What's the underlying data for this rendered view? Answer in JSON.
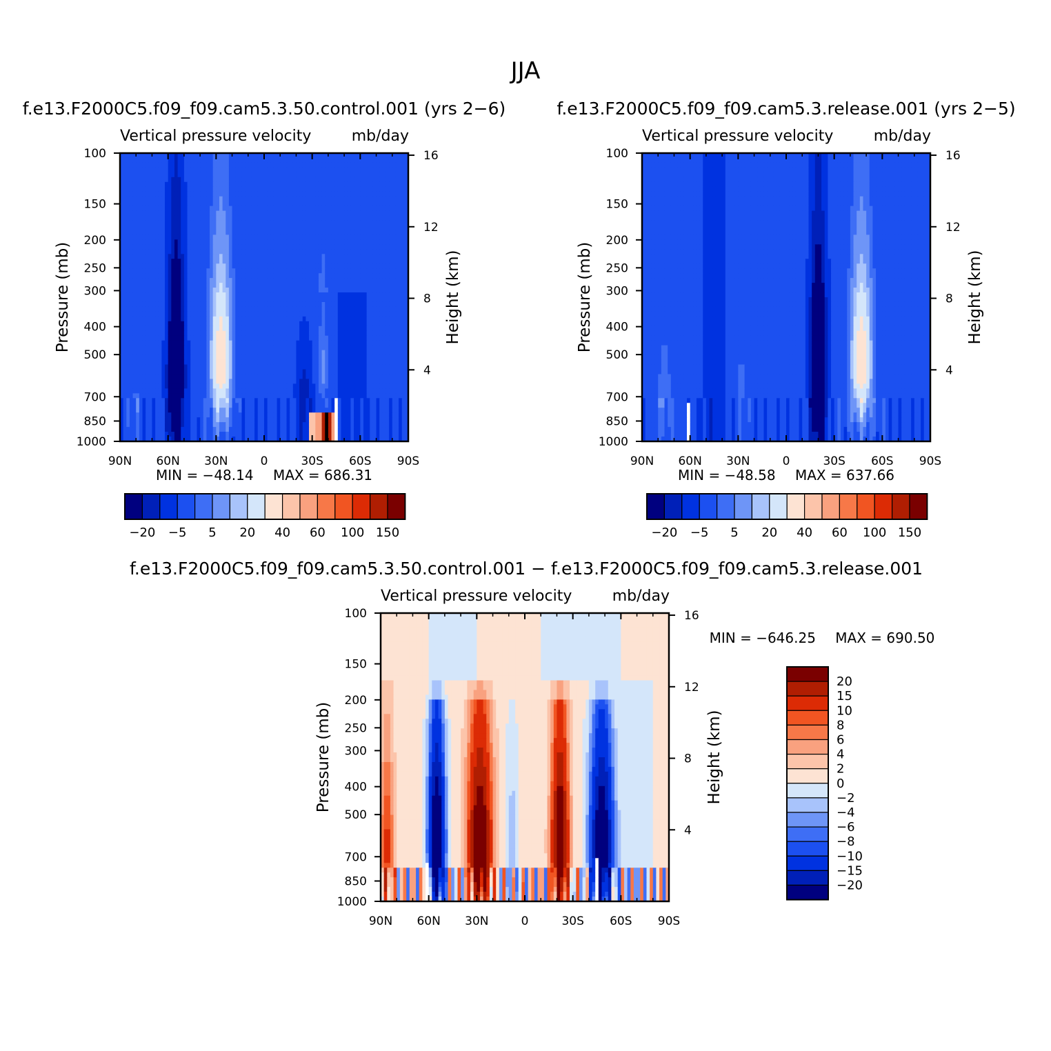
{
  "figure_title": "JJA",
  "chart_data": [
    {
      "type": "heatmap",
      "panel": "control",
      "title": "f.e13.F2000C5.f09_f09.cam5.3.50.control.001 (yrs 2−6)",
      "subtitle_left": "Vertical pressure velocity",
      "subtitle_right": "mb/day",
      "xlabel": "",
      "ylabel": "Pressure (mb)",
      "ylabel_right": "Height (km)",
      "x_ticks": [
        "90N",
        "60N",
        "30N",
        "0",
        "30S",
        "60S",
        "90S"
      ],
      "x_tick_values": [
        90,
        60,
        30,
        0,
        -30,
        -60,
        -90
      ],
      "xlim": [
        90,
        -90
      ],
      "y_ticks": [
        100,
        150,
        200,
        250,
        300,
        400,
        500,
        700,
        850,
        1000
      ],
      "ylim": [
        1000,
        100
      ],
      "y_scale": "log",
      "right_ticks": [
        4,
        8,
        12,
        16
      ],
      "min_text": "MIN = −48.14",
      "max_text": "MAX = 686.31",
      "min": -48.14,
      "max": 686.31,
      "colorbar_labels": [
        "−20",
        "−5",
        "5",
        "20",
        "40",
        "60",
        "100",
        "150"
      ],
      "colorbar_orientation": "horizontal",
      "features": [
        {
          "lat": 55,
          "p_top": 230,
          "p_bot": 1000,
          "value": -35,
          "desc": "strong descent near 55N"
        },
        {
          "lat": 28,
          "p_top": 240,
          "p_bot": 1000,
          "value": 15,
          "desc": "ascent near 28N"
        },
        {
          "lat": -25,
          "p_top": 350,
          "p_bot": 1000,
          "value": -14,
          "desc": "descent near 25S"
        },
        {
          "lat": -40,
          "p_top": 700,
          "p_bot": 1000,
          "value": 150,
          "desc": "strong ascent near 40S surface"
        }
      ]
    },
    {
      "type": "heatmap",
      "panel": "release",
      "title": "f.e13.F2000C5.f09_f09.cam5.3.release.001 (yrs 2−5)",
      "subtitle_left": "Vertical pressure velocity",
      "subtitle_right": "mb/day",
      "xlabel": "",
      "ylabel": "Pressure (mb)",
      "ylabel_right": "Height (km)",
      "x_ticks": [
        "90N",
        "60N",
        "30N",
        "0",
        "30S",
        "60S",
        "90S"
      ],
      "x_tick_values": [
        90,
        60,
        30,
        0,
        -30,
        -60,
        -90
      ],
      "xlim": [
        90,
        -90
      ],
      "y_ticks": [
        100,
        150,
        200,
        250,
        300,
        400,
        500,
        700,
        850,
        1000
      ],
      "ylim": [
        1000,
        100
      ],
      "y_scale": "log",
      "right_ticks": [
        4,
        8,
        12,
        16
      ],
      "min_text": "MIN = −48.58",
      "max_text": "MAX = 637.66",
      "min": -48.58,
      "max": 637.66,
      "colorbar_labels": [
        "−20",
        "−5",
        "5",
        "20",
        "40",
        "60",
        "100",
        "150"
      ],
      "colorbar_orientation": "horizontal",
      "features": [
        {
          "lat": -20,
          "p_top": 230,
          "p_bot": 1000,
          "value": -35,
          "desc": "strong descent near 20S"
        },
        {
          "lat": -47,
          "p_top": 240,
          "p_bot": 1000,
          "value": 15,
          "desc": "ascent near 47S"
        },
        {
          "lat": 75,
          "p_top": 380,
          "p_bot": 1000,
          "value": 5,
          "desc": "weak ascent near 75N"
        }
      ]
    },
    {
      "type": "heatmap",
      "panel": "difference",
      "title": "f.e13.F2000C5.f09_f09.cam5.3.50.control.001 − f.e13.F2000C5.f09_f09.cam5.3.release.001",
      "subtitle_left": "Vertical pressure velocity",
      "subtitle_right": "mb/day",
      "xlabel": "",
      "ylabel": "Pressure (mb)",
      "ylabel_right": "Height (km)",
      "x_ticks": [
        "90N",
        "60N",
        "30N",
        "0",
        "30S",
        "60S",
        "90S"
      ],
      "x_tick_values": [
        90,
        60,
        30,
        0,
        -30,
        -60,
        -90
      ],
      "xlim": [
        90,
        -90
      ],
      "y_ticks": [
        100,
        150,
        200,
        250,
        300,
        400,
        500,
        700,
        850,
        1000
      ],
      "ylim": [
        1000,
        100
      ],
      "y_scale": "log",
      "right_ticks": [
        4,
        8,
        12,
        16
      ],
      "min_text": "MIN = −646.25",
      "max_text": "MAX = 690.50",
      "min": -646.25,
      "max": 690.5,
      "colorbar_labels": [
        "20",
        "15",
        "10",
        "8",
        "6",
        "4",
        "2",
        "0",
        "−2",
        "−4",
        "−6",
        "−8",
        "−10",
        "−15",
        "−20"
      ],
      "colorbar_orientation": "vertical",
      "features": [
        {
          "lat": 55,
          "p_top": 260,
          "p_bot": 1000,
          "value": -30,
          "desc": "negative near 55N"
        },
        {
          "lat": 28,
          "p_top": 240,
          "p_bot": 1000,
          "value": 25,
          "desc": "positive near 28N"
        },
        {
          "lat": -22,
          "p_top": 220,
          "p_bot": 1000,
          "value": 25,
          "desc": "positive near 22S"
        },
        {
          "lat": -48,
          "p_top": 260,
          "p_bot": 1000,
          "value": -30,
          "desc": "negative near 48S"
        },
        {
          "lat": 85,
          "p_top": 200,
          "p_bot": 1000,
          "value": 10,
          "desc": "positive near 85N"
        }
      ]
    }
  ],
  "colors": {
    "seq_colorbar": [
      "#00007f",
      "#0020b8",
      "#0032e0",
      "#1c50f0",
      "#3e6ef5",
      "#6e95f7",
      "#a8c3fb",
      "#d4e6fa",
      "#fde3d3",
      "#fcc4aa",
      "#f9a17f",
      "#f77848",
      "#f15522",
      "#dc2b05",
      "#b01e02",
      "#7a0000"
    ],
    "diff_colorbar": [
      "#7a0000",
      "#b01e02",
      "#dc2b05",
      "#f15522",
      "#f77848",
      "#f9a17f",
      "#fcc4aa",
      "#fde3d3",
      "#d4e6fa",
      "#a8c3fb",
      "#6e95f7",
      "#3e6ef5",
      "#1c50f0",
      "#0032e0",
      "#0020b8",
      "#00007f"
    ]
  }
}
